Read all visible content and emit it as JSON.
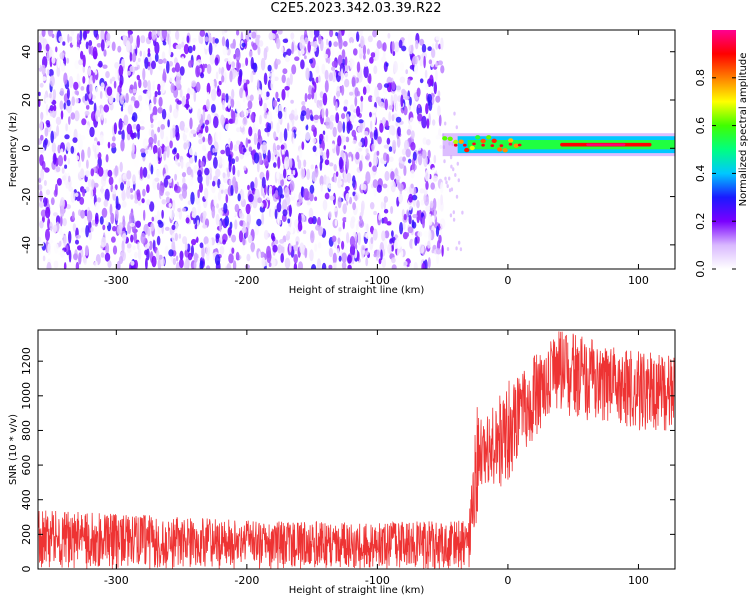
{
  "title": "C2E5.2023.342.03.39.R22",
  "chart_data": [
    {
      "type": "heatmap",
      "xlabel": "Height of straight line (km)",
      "ylabel": "Frequency (Hz)",
      "xlim": [
        -360,
        128
      ],
      "ylim": [
        -50,
        49
      ],
      "xticks": [
        -300,
        -200,
        -100,
        0,
        100
      ],
      "yticks": [
        -40,
        -20,
        0,
        20,
        40
      ],
      "colorbar": {
        "label": "Normalized spectral amplitude",
        "range": [
          0,
          1
        ],
        "ticks": [
          "0.0",
          "0.2",
          "0.4",
          "0.6",
          "0.8"
        ],
        "colors": [
          "#ffffff",
          "#d9b8ff",
          "#7a00ff",
          "#1a1aff",
          "#00c8ff",
          "#00ff80",
          "#40ff00",
          "#ffff00",
          "#ff8000",
          "#ff0000",
          "#ff0090"
        ]
      },
      "regions": [
        {
          "name": "noise",
          "x": [
            -360,
            -50
          ],
          "frequency": [
            -50,
            49
          ],
          "amplitude": 0.15
        },
        {
          "name": "signal",
          "x": [
            -50,
            128
          ],
          "frequency_center": 1.5,
          "frequency_halfwidth": 3.5,
          "amplitude_peak": 0.95
        }
      ],
      "grid": false
    },
    {
      "type": "line",
      "xlabel": "Height of straight line (km)",
      "ylabel": "SNR (10 * v/v)",
      "xlim": [
        -360,
        128
      ],
      "ylim": [
        0,
        1380
      ],
      "xticks": [
        -300,
        -200,
        -100,
        0,
        100
      ],
      "yticks": [
        0,
        200,
        400,
        600,
        800,
        1000,
        1200
      ],
      "color": "#ee3333",
      "series": [
        {
          "x": [
            -360,
            -300,
            -200,
            -100,
            -30,
            -27,
            -24,
            -20,
            -15,
            -10,
            0,
            10,
            20,
            30,
            40,
            60,
            80,
            100,
            128
          ],
          "y_min": [
            0,
            0,
            0,
            0,
            0,
            100,
            80,
            450,
            500,
            480,
            450,
            650,
            750,
            850,
            900,
            850,
            850,
            800,
            800
          ],
          "y_max": [
            340,
            320,
            280,
            270,
            280,
            620,
            950,
            850,
            900,
            950,
            1100,
            1150,
            1250,
            1300,
            1380,
            1340,
            1280,
            1260,
            1250
          ]
        }
      ],
      "grid": false
    }
  ]
}
